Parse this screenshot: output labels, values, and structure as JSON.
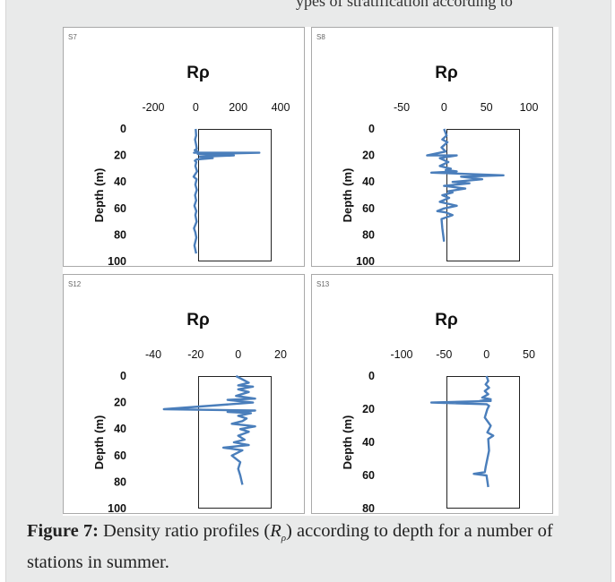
{
  "header_fragment": "ypes of stratification according to",
  "caption": {
    "label": "Figure 7:",
    "text_before": "Density ratio profiles (",
    "symbol": "R",
    "symbol_sub": "ρ",
    "text_after": ") according to depth for a number of stations in summer."
  },
  "series_color": "#4a7ebb",
  "chart_data": [
    {
      "type": "line",
      "station": "S7",
      "title": "Rρ",
      "ylabel": "Depth (m)",
      "xlim": [
        -200,
        400
      ],
      "ylim": [
        0,
        100
      ],
      "xticks": [
        "-200",
        "0",
        "200",
        "400"
      ],
      "yticks": [
        "0",
        "20",
        "40",
        "60",
        "80",
        "100"
      ],
      "x": [
        0,
        2,
        -3,
        2,
        5,
        -5,
        10,
        -8,
        300,
        10,
        180,
        20,
        80,
        5,
        -4,
        3,
        -2,
        6,
        -10,
        4,
        -2,
        5,
        -3,
        2,
        -6,
        3,
        -2,
        4,
        -8,
        -2,
        3,
        -6,
        2
      ],
      "y": [
        0,
        5,
        8,
        12,
        15,
        16,
        17,
        18,
        18,
        19,
        20,
        21,
        22,
        23,
        24,
        25,
        28,
        32,
        36,
        38,
        42,
        46,
        50,
        54,
        58,
        62,
        65,
        70,
        75,
        78,
        82,
        88,
        94
      ]
    },
    {
      "type": "line",
      "station": "S8",
      "title": "Rρ",
      "ylabel": "Depth (m)",
      "xlim": [
        -50,
        100
      ],
      "ylim": [
        0,
        100
      ],
      "xticks": [
        "-50",
        "0",
        "50",
        "100"
      ],
      "yticks": [
        "0",
        "20",
        "40",
        "60",
        "80",
        "100"
      ],
      "x": [
        0,
        3,
        -2,
        4,
        -3,
        2,
        -20,
        15,
        -5,
        5,
        -5,
        8,
        2,
        15,
        -15,
        70,
        20,
        45,
        10,
        30,
        0,
        25,
        5,
        10,
        -2,
        6,
        -5,
        15,
        0,
        -8,
        2,
        10,
        -3,
        -2,
        0
      ],
      "y": [
        0,
        5,
        8,
        10,
        14,
        17,
        20,
        20,
        22,
        25,
        28,
        30,
        31,
        32,
        33,
        35,
        36,
        38,
        40,
        41,
        43,
        45,
        47,
        48,
        50,
        52,
        55,
        58,
        60,
        62,
        63,
        65,
        68,
        75,
        85
      ]
    },
    {
      "type": "line",
      "station": "S12",
      "title": "Rρ",
      "ylabel": "Depth (m)",
      "xlim": [
        -40,
        20
      ],
      "ylim": [
        0,
        100
      ],
      "xticks": [
        "-40",
        "-20",
        "0",
        "20"
      ],
      "yticks": [
        "0",
        "20",
        "40",
        "60",
        "80",
        "100"
      ],
      "x": [
        -1,
        5,
        0,
        7,
        0,
        5,
        -1,
        8,
        -5,
        7,
        -35,
        8,
        -5,
        6,
        0,
        4,
        2,
        -3,
        3,
        8,
        1,
        5,
        0,
        3,
        -2,
        5,
        -7,
        2,
        -3,
        1,
        0,
        1,
        2
      ],
      "y": [
        0,
        5,
        7,
        8,
        10,
        12,
        15,
        17,
        18,
        20,
        25,
        26,
        27,
        28,
        30,
        32,
        34,
        36,
        37,
        38,
        40,
        42,
        45,
        48,
        50,
        52,
        54,
        56,
        60,
        65,
        70,
        75,
        82
      ]
    },
    {
      "type": "line",
      "station": "S13",
      "title": "Rρ",
      "ylabel": "Depth (m)",
      "xlim": [
        -100,
        50
      ],
      "ylim": [
        0,
        80
      ],
      "xticks": [
        "-100",
        "-50",
        "0",
        "50"
      ],
      "yticks": [
        "0",
        "20",
        "40",
        "60",
        "80"
      ],
      "x": [
        0,
        2,
        -1,
        3,
        -2,
        2,
        -5,
        5,
        -8,
        5,
        -65,
        0,
        3,
        1,
        -2,
        5,
        1,
        8,
        2,
        3,
        1,
        -1,
        -2,
        -15,
        0,
        2
      ],
      "y": [
        0,
        3,
        5,
        7,
        9,
        11,
        13,
        14,
        15,
        15,
        16,
        17,
        18,
        20,
        25,
        30,
        34,
        36,
        38,
        45,
        50,
        55,
        58,
        59,
        60,
        67
      ]
    }
  ]
}
